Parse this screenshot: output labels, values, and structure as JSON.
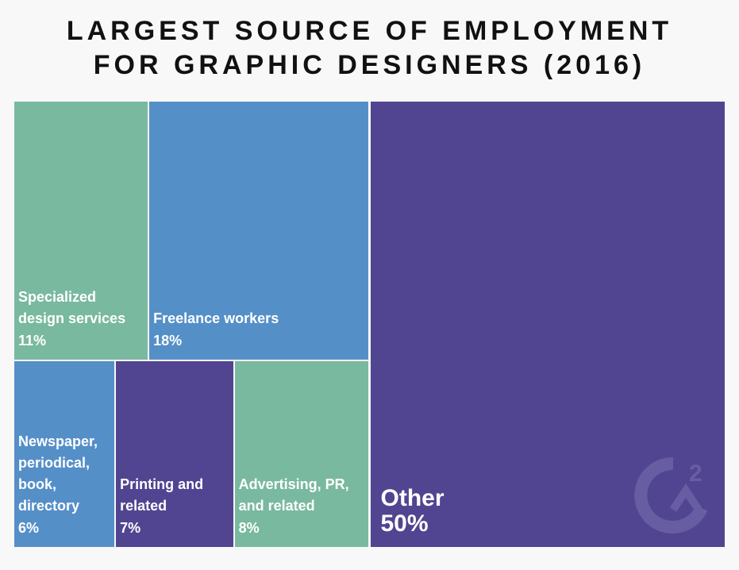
{
  "title_lines": [
    "LARGEST SOURCE OF EMPLOYMENT",
    "FOR GRAPHIC DESIGNERS (2016)"
  ],
  "chart_data": {
    "type": "treemap",
    "title": "LARGEST SOURCE OF EMPLOYMENT FOR GRAPHIC DESIGNERS (2016)",
    "unit": "%",
    "items": [
      {
        "label": "Specialized\ndesign services",
        "value": 11,
        "value_label": "11%",
        "color": "#79b9a0"
      },
      {
        "label": "Freelance workers",
        "value": 18,
        "value_label": "18%",
        "color": "#558fc8"
      },
      {
        "label": "Newspaper,\nperiodical,\nbook,\ndirectory",
        "value": 6,
        "value_label": "6%",
        "color": "#558fc8"
      },
      {
        "label": "Printing and\nrelated",
        "value": 7,
        "value_label": "7%",
        "color": "#514591"
      },
      {
        "label": "Advertising, PR,\nand related",
        "value": 8,
        "value_label": "8%",
        "color": "#79b9a0"
      },
      {
        "label": "Other",
        "value": 50,
        "value_label": "50%",
        "color": "#514591"
      }
    ]
  },
  "logo": {
    "icon": "g2-logo-icon",
    "superscript": "2",
    "color": "#7a72b2"
  }
}
